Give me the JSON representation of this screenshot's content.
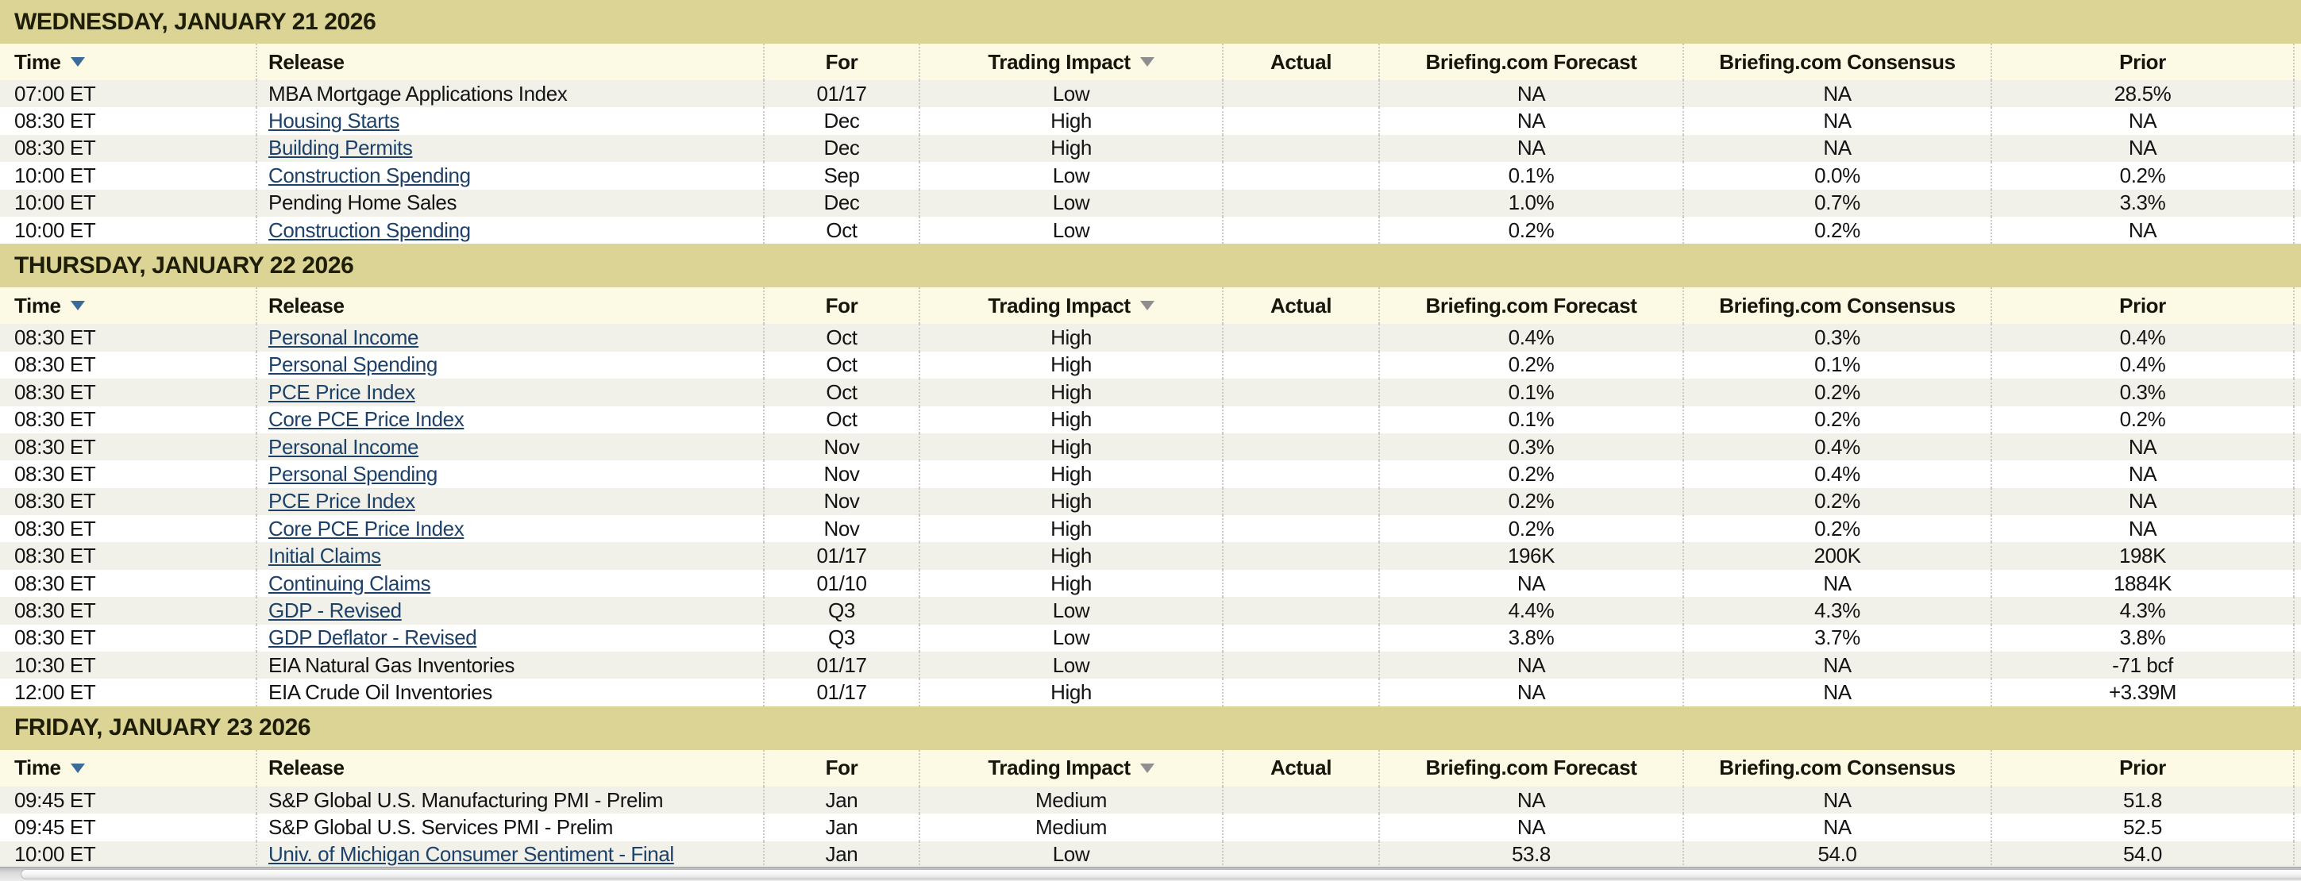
{
  "colors": {
    "band_bg": "#dbd494",
    "header_bg": "#fcf9e4",
    "row_alt_bg": "#f1f1e9",
    "link": "#1d4169",
    "sort_active": "#3a6b99",
    "sort_inactive": "#8f8f8f",
    "dotted_separator": "#cbcbc1"
  },
  "columns": [
    {
      "key": "time",
      "label": "Time",
      "sort_arrow": "active",
      "sortable": true
    },
    {
      "key": "release",
      "label": "Release",
      "sort_arrow": null,
      "sortable": false
    },
    {
      "key": "for",
      "label": "For",
      "sort_arrow": null,
      "sortable": false
    },
    {
      "key": "trading-impact",
      "label": "Trading Impact",
      "sort_arrow": "inactive",
      "sortable": true
    },
    {
      "key": "actual",
      "label": "Actual",
      "sort_arrow": null,
      "sortable": false
    },
    {
      "key": "briefing-com-forecast",
      "label": "Briefing.com Forecast",
      "sort_arrow": null,
      "sortable": false
    },
    {
      "key": "briefing-com-consensus",
      "label": "Briefing.com Consensus",
      "sort_arrow": null,
      "sortable": false
    },
    {
      "key": "prior",
      "label": "Prior",
      "sort_arrow": null,
      "sortable": false
    }
  ],
  "sections": [
    {
      "date": "WEDNESDAY, JANUARY 21 2026",
      "rows": [
        {
          "time": "07:00 ET",
          "release": "MBA Mortgage Applications Index",
          "link": false,
          "for": "01/17",
          "impact": "Low",
          "actual": "",
          "forecast": "NA",
          "consensus": "NA",
          "prior": "28.5%"
        },
        {
          "time": "08:30 ET",
          "release": "Housing Starts",
          "link": true,
          "for": "Dec",
          "impact": "High",
          "actual": "",
          "forecast": "NA",
          "consensus": "NA",
          "prior": "NA"
        },
        {
          "time": "08:30 ET",
          "release": "Building Permits",
          "link": true,
          "for": "Dec",
          "impact": "High",
          "actual": "",
          "forecast": "NA",
          "consensus": "NA",
          "prior": "NA"
        },
        {
          "time": "10:00 ET",
          "release": "Construction Spending",
          "link": true,
          "for": "Sep",
          "impact": "Low",
          "actual": "",
          "forecast": "0.1%",
          "consensus": "0.0%",
          "prior": "0.2%"
        },
        {
          "time": "10:00 ET",
          "release": "Pending Home Sales",
          "link": false,
          "for": "Dec",
          "impact": "Low",
          "actual": "",
          "forecast": "1.0%",
          "consensus": "0.7%",
          "prior": "3.3%"
        },
        {
          "time": "10:00 ET",
          "release": "Construction Spending",
          "link": true,
          "for": "Oct",
          "impact": "Low",
          "actual": "",
          "forecast": "0.2%",
          "consensus": "0.2%",
          "prior": "NA"
        }
      ]
    },
    {
      "date": "THURSDAY, JANUARY 22 2026",
      "rows": [
        {
          "time": "08:30 ET",
          "release": "Personal Income",
          "link": true,
          "for": "Oct",
          "impact": "High",
          "actual": "",
          "forecast": "0.4%",
          "consensus": "0.3%",
          "prior": "0.4%"
        },
        {
          "time": "08:30 ET",
          "release": "Personal Spending",
          "link": true,
          "for": "Oct",
          "impact": "High",
          "actual": "",
          "forecast": "0.2%",
          "consensus": "0.1%",
          "prior": "0.4%"
        },
        {
          "time": "08:30 ET",
          "release": "PCE Price Index",
          "link": true,
          "for": "Oct",
          "impact": "High",
          "actual": "",
          "forecast": "0.1%",
          "consensus": "0.2%",
          "prior": "0.3%"
        },
        {
          "time": "08:30 ET",
          "release": "Core PCE Price Index",
          "link": true,
          "for": "Oct",
          "impact": "High",
          "actual": "",
          "forecast": "0.1%",
          "consensus": "0.2%",
          "prior": "0.2%"
        },
        {
          "time": "08:30 ET",
          "release": "Personal Income",
          "link": true,
          "for": "Nov",
          "impact": "High",
          "actual": "",
          "forecast": "0.3%",
          "consensus": "0.4%",
          "prior": "NA"
        },
        {
          "time": "08:30 ET",
          "release": "Personal Spending",
          "link": true,
          "for": "Nov",
          "impact": "High",
          "actual": "",
          "forecast": "0.2%",
          "consensus": "0.4%",
          "prior": "NA"
        },
        {
          "time": "08:30 ET",
          "release": "PCE Price Index",
          "link": true,
          "for": "Nov",
          "impact": "High",
          "actual": "",
          "forecast": "0.2%",
          "consensus": "0.2%",
          "prior": "NA"
        },
        {
          "time": "08:30 ET",
          "release": "Core PCE Price Index",
          "link": true,
          "for": "Nov",
          "impact": "High",
          "actual": "",
          "forecast": "0.2%",
          "consensus": "0.2%",
          "prior": "NA"
        },
        {
          "time": "08:30 ET",
          "release": "Initial Claims",
          "link": true,
          "for": "01/17",
          "impact": "High",
          "actual": "",
          "forecast": "196K",
          "consensus": "200K",
          "prior": "198K"
        },
        {
          "time": "08:30 ET",
          "release": "Continuing Claims",
          "link": true,
          "for": "01/10",
          "impact": "High",
          "actual": "",
          "forecast": "NA",
          "consensus": "NA",
          "prior": "1884K"
        },
        {
          "time": "08:30 ET",
          "release": "GDP - Revised",
          "link": true,
          "for": "Q3",
          "impact": "Low",
          "actual": "",
          "forecast": "4.4%",
          "consensus": "4.3%",
          "prior": "4.3%"
        },
        {
          "time": "08:30 ET",
          "release": "GDP Deflator - Revised",
          "link": true,
          "for": "Q3",
          "impact": "Low",
          "actual": "",
          "forecast": "3.8%",
          "consensus": "3.7%",
          "prior": "3.8%"
        },
        {
          "time": "10:30 ET",
          "release": "EIA Natural Gas Inventories",
          "link": false,
          "for": "01/17",
          "impact": "Low",
          "actual": "",
          "forecast": "NA",
          "consensus": "NA",
          "prior": "-71 bcf"
        },
        {
          "time": "12:00 ET",
          "release": "EIA Crude Oil Inventories",
          "link": false,
          "for": "01/17",
          "impact": "High",
          "actual": "",
          "forecast": "NA",
          "consensus": "NA",
          "prior": "+3.39M"
        }
      ]
    },
    {
      "date": "FRIDAY, JANUARY 23 2026",
      "rows": [
        {
          "time": "09:45 ET",
          "release": "S&P Global U.S. Manufacturing PMI - Prelim",
          "link": false,
          "for": "Jan",
          "impact": "Medium",
          "actual": "",
          "forecast": "NA",
          "consensus": "NA",
          "prior": "51.8"
        },
        {
          "time": "09:45 ET",
          "release": "S&P Global U.S. Services PMI - Prelim",
          "link": false,
          "for": "Jan",
          "impact": "Medium",
          "actual": "",
          "forecast": "NA",
          "consensus": "NA",
          "prior": "52.5"
        },
        {
          "time": "10:00 ET",
          "release": "Univ. of Michigan Consumer Sentiment - Final",
          "link": true,
          "for": "Jan",
          "impact": "Low",
          "actual": "",
          "forecast": "53.8",
          "consensus": "54.0",
          "prior": "54.0"
        }
      ]
    }
  ]
}
